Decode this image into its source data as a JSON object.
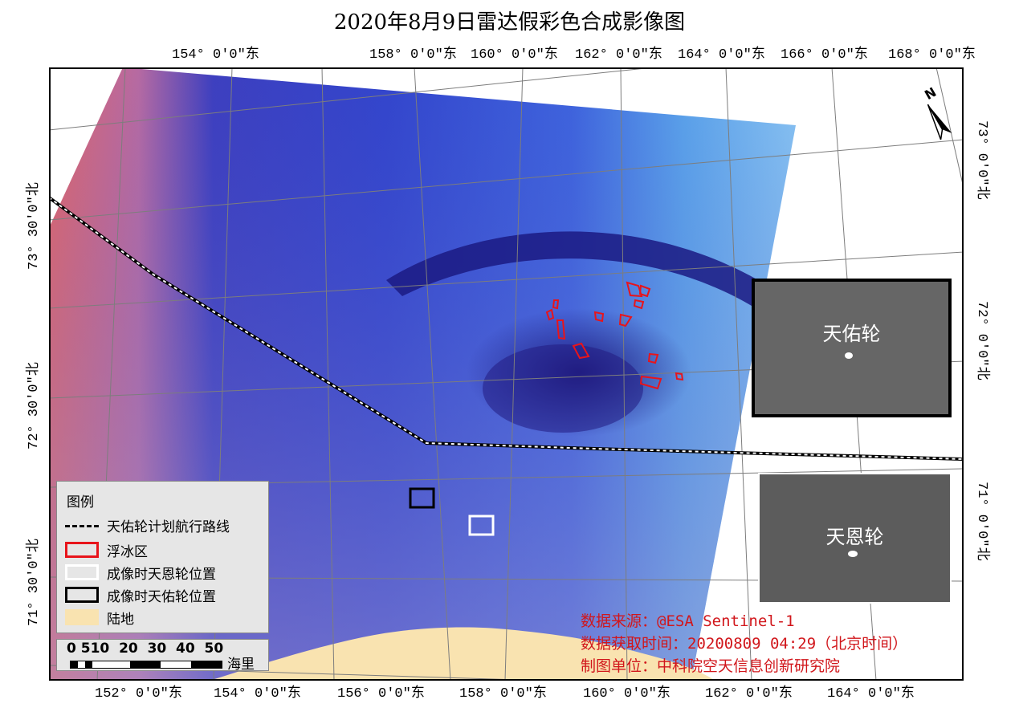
{
  "title": "2020年8月9日雷达假彩色合成影像图",
  "top_labels": [
    "154° 0'0\"东",
    "158° 0'0\"东",
    "160° 0'0\"东",
    "162° 0'0\"东",
    "164° 0'0\"东",
    "166° 0'0\"东",
    "168° 0'0\"东"
  ],
  "bottom_labels": [
    "152° 0'0\"东",
    "154° 0'0\"东",
    "156° 0'0\"东",
    "158° 0'0\"东",
    "160° 0'0\"东",
    "162° 0'0\"东",
    "164° 0'0\"东"
  ],
  "left_labels": [
    "73° 30'0\"北",
    "72° 30'0\"北",
    "71° 30'0\"北"
  ],
  "right_labels": [
    "73° 0'0\"北",
    "72° 0'0\"北",
    "71° 0'0\"北"
  ],
  "north_arrow_label": "N",
  "insets": [
    {
      "caption": "天佑轮",
      "border_color": "#000000"
    },
    {
      "caption": "天恩轮",
      "border_color": "#ffffff"
    }
  ],
  "legend": {
    "title": "图例",
    "items": [
      {
        "label": "天佑轮计划航行路线",
        "symbol": "dashed-line"
      },
      {
        "label": "浮冰区",
        "symbol": "red-box"
      },
      {
        "label": "成像时天恩轮位置",
        "symbol": "white-box"
      },
      {
        "label": "成像时天佑轮位置",
        "symbol": "black-box"
      },
      {
        "label": "陆地",
        "symbol": "land-fill"
      }
    ]
  },
  "scale": {
    "ticks": "0 510  20  30  40  50",
    "unit": "海里"
  },
  "credits": [
    "数据来源：@ESA Sentinel-1",
    "数据获取时间：20200809 04:29（北京时间）",
    "制图单位：中科院空天信息创新研究院"
  ],
  "colors": {
    "ice_outline": "#e8141b",
    "credits_text": "#d1161b",
    "land": "#f9e3b0",
    "sea_blue": "#3a4fd6",
    "sea_red": "#e0666b"
  }
}
